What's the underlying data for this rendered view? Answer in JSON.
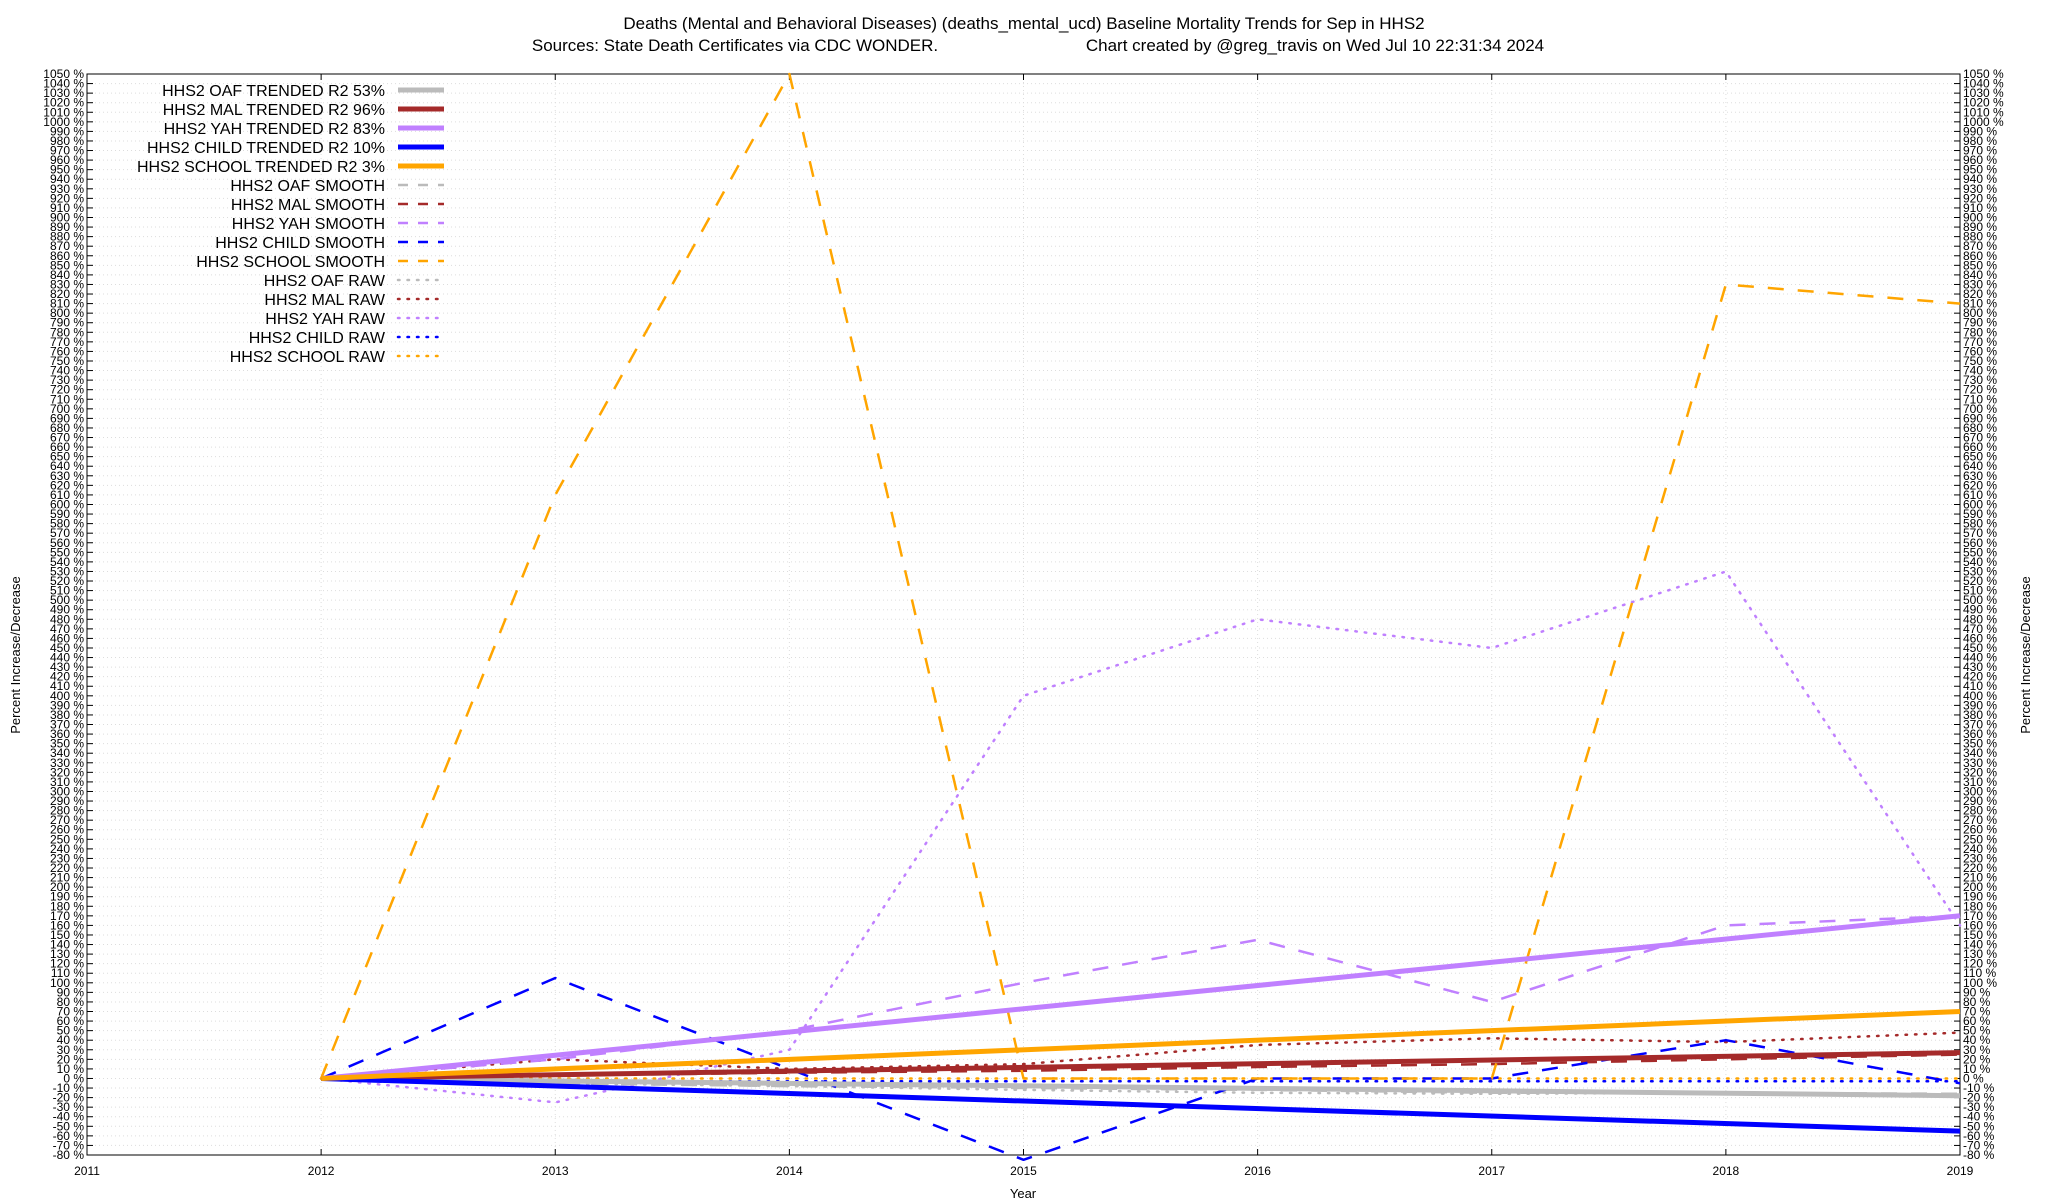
{
  "chart_data": {
    "type": "line",
    "title": "Deaths (Mental and Behavioral Diseases) (deaths_mental_ucd)  Baseline Mortality Trends for Sep in HHS2",
    "subtitle_left": "Sources: State Death Certificates via CDC WONDER.",
    "subtitle_right": "Chart created by @greg_travis on Wed Jul 10 22:31:34 2024",
    "xlabel": "Year",
    "ylabel": "Percent Increase/Decrease",
    "y2label": "Percent Increase/Decrease",
    "xlim": [
      2011,
      2019
    ],
    "ylim": [
      -80,
      1050
    ],
    "x_ticks": [
      "2011",
      "2012",
      "2013",
      "2014",
      "2015",
      "2016",
      "2017",
      "2018",
      "2019"
    ],
    "y_tick_step": 10,
    "y_tick_suffix": " %",
    "grid": true,
    "legend_position": "top-left",
    "series": [
      {
        "name": "HHS2 OAF TRENDED R2  53%",
        "style": "trend",
        "color": "#bbbbbb",
        "x": [
          2012,
          2019
        ],
        "y": [
          0,
          -18
        ]
      },
      {
        "name": "HHS2 MAL TRENDED R2  96%",
        "style": "trend",
        "color": "#a52a2a",
        "x": [
          2012,
          2019
        ],
        "y": [
          0,
          27
        ]
      },
      {
        "name": "HHS2 YAH TRENDED R2  83%",
        "style": "trend",
        "color": "#c080ff",
        "x": [
          2012,
          2019
        ],
        "y": [
          0,
          170
        ]
      },
      {
        "name": "HHS2 CHILD TRENDED R2  10%",
        "style": "trend",
        "color": "#0000ff",
        "x": [
          2012,
          2019
        ],
        "y": [
          0,
          -55
        ]
      },
      {
        "name": "HHS2 SCHOOL TRENDED R2   3%",
        "style": "trend",
        "color": "#ffa500",
        "x": [
          2012,
          2019
        ],
        "y": [
          0,
          70
        ]
      },
      {
        "name": "HHS2 OAF SMOOTH",
        "style": "smooth",
        "color": "#bbbbbb",
        "x": [
          2012,
          2013,
          2014,
          2015,
          2016,
          2017,
          2018,
          2019
        ],
        "y": [
          0,
          -5,
          -8,
          -10,
          -12,
          -15,
          -15,
          -16
        ]
      },
      {
        "name": "HHS2 MAL SMOOTH",
        "style": "smooth",
        "color": "#a52a2a",
        "x": [
          2012,
          2013,
          2014,
          2015,
          2016,
          2017,
          2018,
          2019
        ],
        "y": [
          0,
          3,
          6,
          8,
          12,
          15,
          20,
          25
        ]
      },
      {
        "name": "HHS2 YAH SMOOTH",
        "style": "smooth",
        "color": "#c080ff",
        "x": [
          2012,
          2013,
          2014,
          2015,
          2016,
          2017,
          2018,
          2019
        ],
        "y": [
          0,
          20,
          50,
          100,
          145,
          80,
          160,
          170
        ]
      },
      {
        "name": "HHS2 CHILD SMOOTH",
        "style": "smooth",
        "color": "#0000ff",
        "x": [
          2012,
          2013,
          2014,
          2015,
          2016,
          2017,
          2018,
          2019
        ],
        "y": [
          0,
          105,
          10,
          -85,
          0,
          0,
          40,
          -5
        ]
      },
      {
        "name": "HHS2 SCHOOL SMOOTH",
        "style": "smooth",
        "color": "#ffa500",
        "x": [
          2012,
          2013,
          2014,
          2015,
          2016,
          2017,
          2018,
          2019
        ],
        "y": [
          0,
          610,
          1050,
          0,
          0,
          0,
          830,
          810
        ]
      },
      {
        "name": "HHS2 OAF RAW",
        "style": "raw",
        "color": "#bbbbbb",
        "x": [
          2012,
          2013,
          2014,
          2015,
          2016,
          2017,
          2018,
          2019
        ],
        "y": [
          0,
          -5,
          -8,
          -12,
          -15,
          -16,
          -15,
          -18
        ]
      },
      {
        "name": "HHS2 MAL RAW",
        "style": "raw",
        "color": "#a52a2a",
        "x": [
          2012,
          2013,
          2014,
          2015,
          2016,
          2017,
          2018,
          2019
        ],
        "y": [
          0,
          20,
          10,
          15,
          35,
          42,
          38,
          48
        ]
      },
      {
        "name": "HHS2 YAH RAW",
        "style": "raw",
        "color": "#c080ff",
        "x": [
          2012,
          2013,
          2014,
          2015,
          2016,
          2017,
          2018,
          2019
        ],
        "y": [
          0,
          -25,
          30,
          400,
          480,
          450,
          530,
          160
        ]
      },
      {
        "name": "HHS2 CHILD RAW",
        "style": "raw",
        "color": "#0000ff",
        "x": [
          2012,
          2013,
          2014,
          2015,
          2016,
          2017,
          2018,
          2019
        ],
        "y": [
          0,
          -3,
          -3,
          -3,
          -3,
          -3,
          -3,
          -3
        ]
      },
      {
        "name": "HHS2 SCHOOL RAW",
        "style": "raw",
        "color": "#ffa500",
        "x": [
          2012,
          2013,
          2014,
          2015,
          2016,
          2017,
          2018,
          2019
        ],
        "y": [
          0,
          0,
          0,
          0,
          0,
          0,
          0,
          0
        ]
      }
    ]
  }
}
